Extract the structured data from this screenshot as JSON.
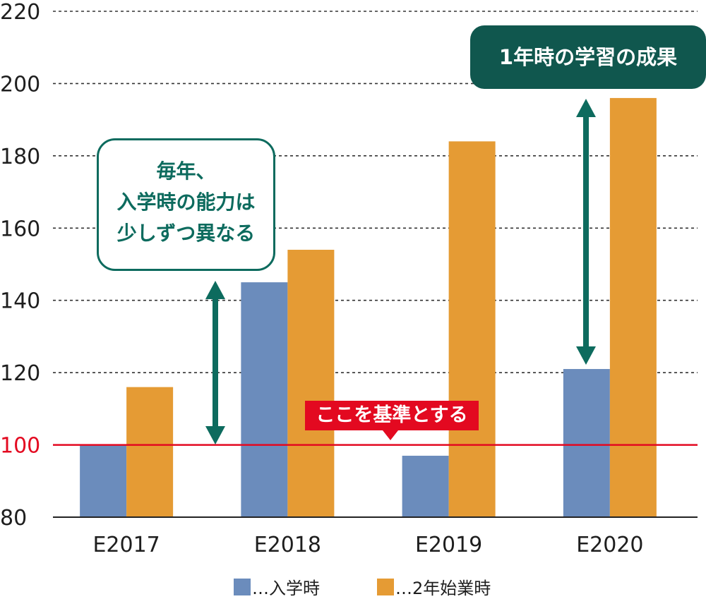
{
  "chart_data": {
    "type": "bar",
    "categories": [
      "E2017",
      "E2018",
      "E2019",
      "E2020"
    ],
    "series": [
      {
        "name": "入学時",
        "values": [
          100,
          145,
          97,
          121
        ],
        "color": "#6b8cbc"
      },
      {
        "name": "2年始業時",
        "values": [
          116,
          154,
          184,
          196
        ],
        "color": "#e59b34"
      }
    ],
    "ylim": [
      80,
      220
    ],
    "yticks": [
      80,
      100,
      120,
      140,
      160,
      180,
      200,
      220
    ],
    "grid": "dotted horizontal",
    "reference_line": {
      "value": 100,
      "color": "#e30920"
    },
    "legend_position": "bottom",
    "legend": [
      {
        "label": "…入学時",
        "color": "#6b8cbc"
      },
      {
        "label": "…2年始業時",
        "color": "#e59b34"
      }
    ],
    "annotations": {
      "ability_note_lines": [
        "毎年、",
        "入学時の能力は",
        "少しずつ異なる"
      ],
      "result_note": "1年時の学習の成果",
      "baseline_note": "ここを基準とする"
    },
    "colors": {
      "accent_green": "#0d6b5e",
      "baseline_red": "#e30920"
    }
  }
}
